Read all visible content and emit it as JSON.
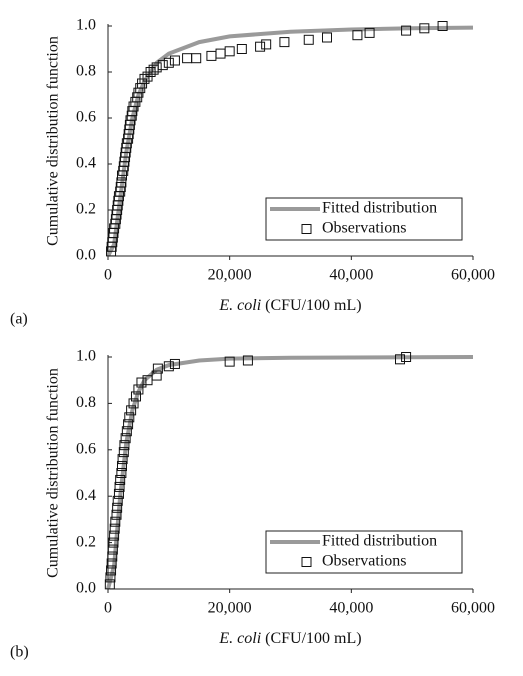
{
  "chart_data": [
    {
      "type": "line",
      "panel_label": "(a)",
      "ylabel": "Cumulative distribution function",
      "xlabel_italic": "E. coli",
      "xlabel": "(CFU/100 mL)",
      "xlim": [
        0,
        60000
      ],
      "ylim": [
        0,
        1
      ],
      "xticks": [
        0,
        {
          "value": 20000,
          "label": "20,000"
        },
        {
          "value": 40000,
          "label": "40,000"
        },
        {
          "value": 60000,
          "label": "60,000"
        }
      ],
      "yticks": [
        {
          "value": 0,
          "label": "0.0"
        },
        0.2,
        0.4,
        0.6,
        0.8,
        {
          "value": 1,
          "label": "1.0"
        }
      ],
      "legend": "lower right",
      "series": [
        {
          "name": "Fitted distribution",
          "style": "line",
          "color": "#9a9a9a",
          "x": [
            0,
            1000,
            2000,
            3000,
            4000,
            5000,
            6000,
            8000,
            10000,
            15000,
            20000,
            30000,
            40000,
            50000,
            60000
          ],
          "values": [
            0,
            0.05,
            0.25,
            0.45,
            0.6,
            0.7,
            0.76,
            0.84,
            0.88,
            0.93,
            0.955,
            0.975,
            0.985,
            0.99,
            0.993
          ]
        },
        {
          "name": "Observations",
          "style": "marker",
          "color": "#111111",
          "x": [
            500,
            600,
            700,
            800,
            900,
            1000,
            1200,
            1300,
            1400,
            1500,
            1600,
            1700,
            1800,
            2000,
            2100,
            2200,
            2300,
            2500,
            2600,
            2700,
            2800,
            2900,
            3000,
            3100,
            3300,
            3400,
            3500,
            3600,
            3700,
            3900,
            4000,
            4200,
            4500,
            4800,
            5000,
            5300,
            5600,
            6000,
            6500,
            7000,
            7500,
            8000,
            9000,
            10000,
            11000,
            13000,
            14500,
            17000,
            18500,
            20000,
            22000,
            25000,
            26000,
            29000,
            33000,
            36000,
            41000,
            43000,
            49000,
            52000,
            55000
          ],
          "values": [
            0.02,
            0.04,
            0.06,
            0.08,
            0.1,
            0.12,
            0.14,
            0.16,
            0.18,
            0.2,
            0.22,
            0.24,
            0.26,
            0.28,
            0.3,
            0.32,
            0.35,
            0.37,
            0.39,
            0.41,
            0.43,
            0.45,
            0.47,
            0.49,
            0.51,
            0.53,
            0.55,
            0.57,
            0.59,
            0.61,
            0.63,
            0.65,
            0.67,
            0.69,
            0.71,
            0.73,
            0.75,
            0.77,
            0.78,
            0.8,
            0.81,
            0.82,
            0.83,
            0.84,
            0.85,
            0.86,
            0.86,
            0.87,
            0.88,
            0.89,
            0.9,
            0.91,
            0.92,
            0.93,
            0.94,
            0.95,
            0.96,
            0.97,
            0.98,
            0.99,
            1.0
          ]
        }
      ]
    },
    {
      "type": "line",
      "panel_label": "(b)",
      "ylabel": "Cumulative distribution function",
      "xlabel_italic": "E. coli",
      "xlabel": "(CFU/100 mL)",
      "xlim": [
        0,
        60000
      ],
      "ylim": [
        0,
        1
      ],
      "xticks": [
        0,
        {
          "value": 20000,
          "label": "20,000"
        },
        {
          "value": 40000,
          "label": "40,000"
        },
        {
          "value": 60000,
          "label": "60,000"
        }
      ],
      "yticks": [
        {
          "value": 0,
          "label": "0.0"
        },
        0.2,
        0.4,
        0.6,
        0.8,
        {
          "value": 1,
          "label": "1.0"
        }
      ],
      "legend": "lower right",
      "series": [
        {
          "name": "Fitted distribution",
          "style": "line",
          "color": "#9a9a9a",
          "x": [
            0,
            1000,
            2000,
            3000,
            4000,
            5000,
            6000,
            8000,
            10000,
            15000,
            20000,
            30000,
            60000
          ],
          "values": [
            0,
            0.1,
            0.4,
            0.63,
            0.77,
            0.85,
            0.9,
            0.945,
            0.965,
            0.985,
            0.993,
            0.997,
            1
          ]
        },
        {
          "name": "Observations",
          "style": "marker",
          "color": "#111111",
          "x": [
            300,
            400,
            500,
            600,
            700,
            800,
            900,
            1000,
            1100,
            1200,
            1400,
            1500,
            1600,
            1800,
            1900,
            2000,
            2200,
            2300,
            2400,
            2600,
            2700,
            2900,
            3100,
            3300,
            3500,
            3800,
            4200,
            4600,
            5000,
            5500,
            6500,
            8000,
            8200,
            10000,
            11000,
            20000,
            23000,
            48000,
            49000
          ],
          "values": [
            0.02,
            0.05,
            0.08,
            0.11,
            0.14,
            0.17,
            0.2,
            0.23,
            0.26,
            0.29,
            0.32,
            0.35,
            0.38,
            0.41,
            0.44,
            0.47,
            0.5,
            0.53,
            0.56,
            0.59,
            0.62,
            0.65,
            0.68,
            0.71,
            0.74,
            0.77,
            0.8,
            0.83,
            0.86,
            0.89,
            0.9,
            0.92,
            0.95,
            0.96,
            0.97,
            0.98,
            0.985,
            0.99,
            1.0
          ]
        }
      ]
    }
  ]
}
